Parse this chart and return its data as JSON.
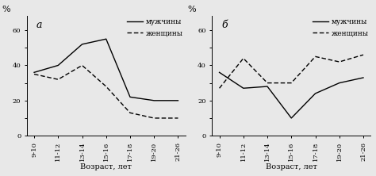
{
  "x_labels": [
    "9-10",
    "11-12",
    "13-14",
    "15-16",
    "17-18",
    "19-20",
    "21-26"
  ],
  "chart_a": {
    "title": "а",
    "men": [
      36,
      40,
      52,
      55,
      22,
      20,
      20
    ],
    "women": [
      35,
      32,
      40,
      28,
      13,
      10,
      10
    ]
  },
  "chart_b": {
    "title": "б",
    "men": [
      36,
      27,
      28,
      10,
      24,
      30,
      33
    ],
    "women": [
      27,
      44,
      30,
      30,
      45,
      42,
      46
    ]
  },
  "ylabel_text": "%",
  "xlabel": "Возраст, лет",
  "legend_men": "мужчины",
  "legend_women": "женщины",
  "ylim": [
    0,
    68
  ],
  "yticks": [
    0,
    10,
    20,
    30,
    40,
    50,
    60
  ],
  "ytick_labels": [
    "0",
    "",
    "20",
    "",
    "40",
    "",
    "60"
  ],
  "line_color": "#000000",
  "bg_color": "#e8e8e8",
  "axes_bg_color": "#e8e8e8",
  "tick_fontsize": 6.0,
  "xlabel_fontsize": 7.0,
  "legend_fontsize": 6.5,
  "title_fontsize": 9
}
